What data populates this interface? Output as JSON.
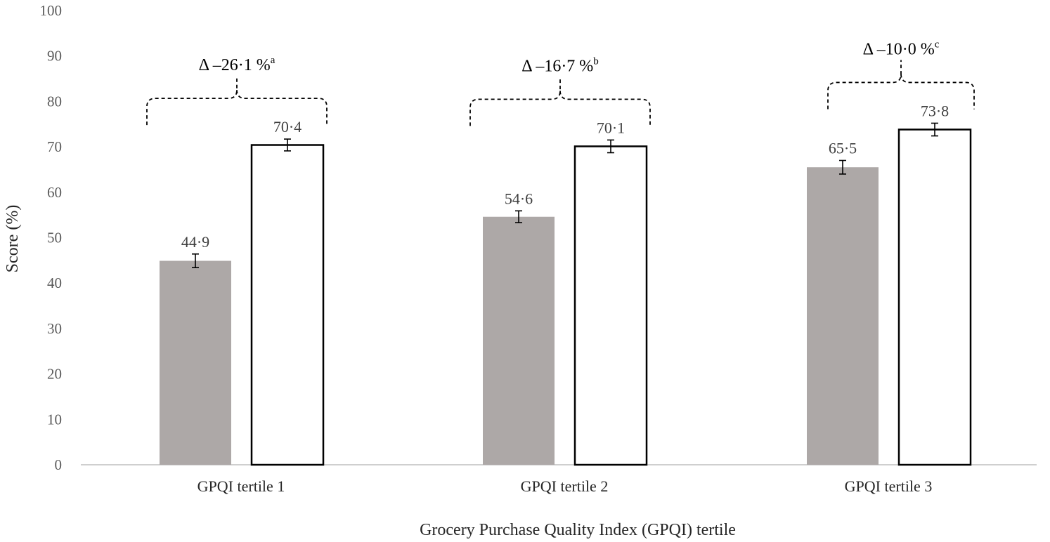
{
  "colors": {
    "bar_gray": "#ada8a7",
    "bar_white": "#ffffff",
    "bar_outline": "#000000",
    "axis_line": "#bfbfbf",
    "text": "#404040"
  },
  "chart_data": {
    "type": "bar",
    "title": "",
    "xlabel": "Grocery Purchase Quality Index (GPQI)  tertile",
    "ylabel": "Score (%)",
    "ylim": [
      0,
      100
    ],
    "yticks": [
      0,
      10,
      20,
      30,
      40,
      50,
      60,
      70,
      80,
      90,
      100
    ],
    "grid": false,
    "legend": "none",
    "categories": [
      "GPQI tertile 1",
      "GPQI tertile 2",
      "GPQI tertile 3"
    ],
    "series": [
      {
        "color": "#ada8a7",
        "fill": "gray",
        "values": [
          44.9,
          54.6,
          65.5
        ],
        "value_labels": [
          "44·9",
          "54·6",
          "65·5"
        ],
        "error": [
          1.5,
          1.3,
          1.5
        ]
      },
      {
        "color": "#ffffff",
        "fill": "white-outlined",
        "values": [
          70.4,
          70.1,
          73.8
        ],
        "value_labels": [
          "70·4",
          "70·1",
          "73·8"
        ],
        "error": [
          1.3,
          1.4,
          1.4
        ]
      }
    ],
    "annotations": [
      {
        "text": "Δ –26·1 %",
        "superscript": "a"
      },
      {
        "text": "Δ –16·7 %",
        "superscript": "b"
      },
      {
        "text": "Δ –10·0 %",
        "superscript": "c"
      }
    ]
  }
}
